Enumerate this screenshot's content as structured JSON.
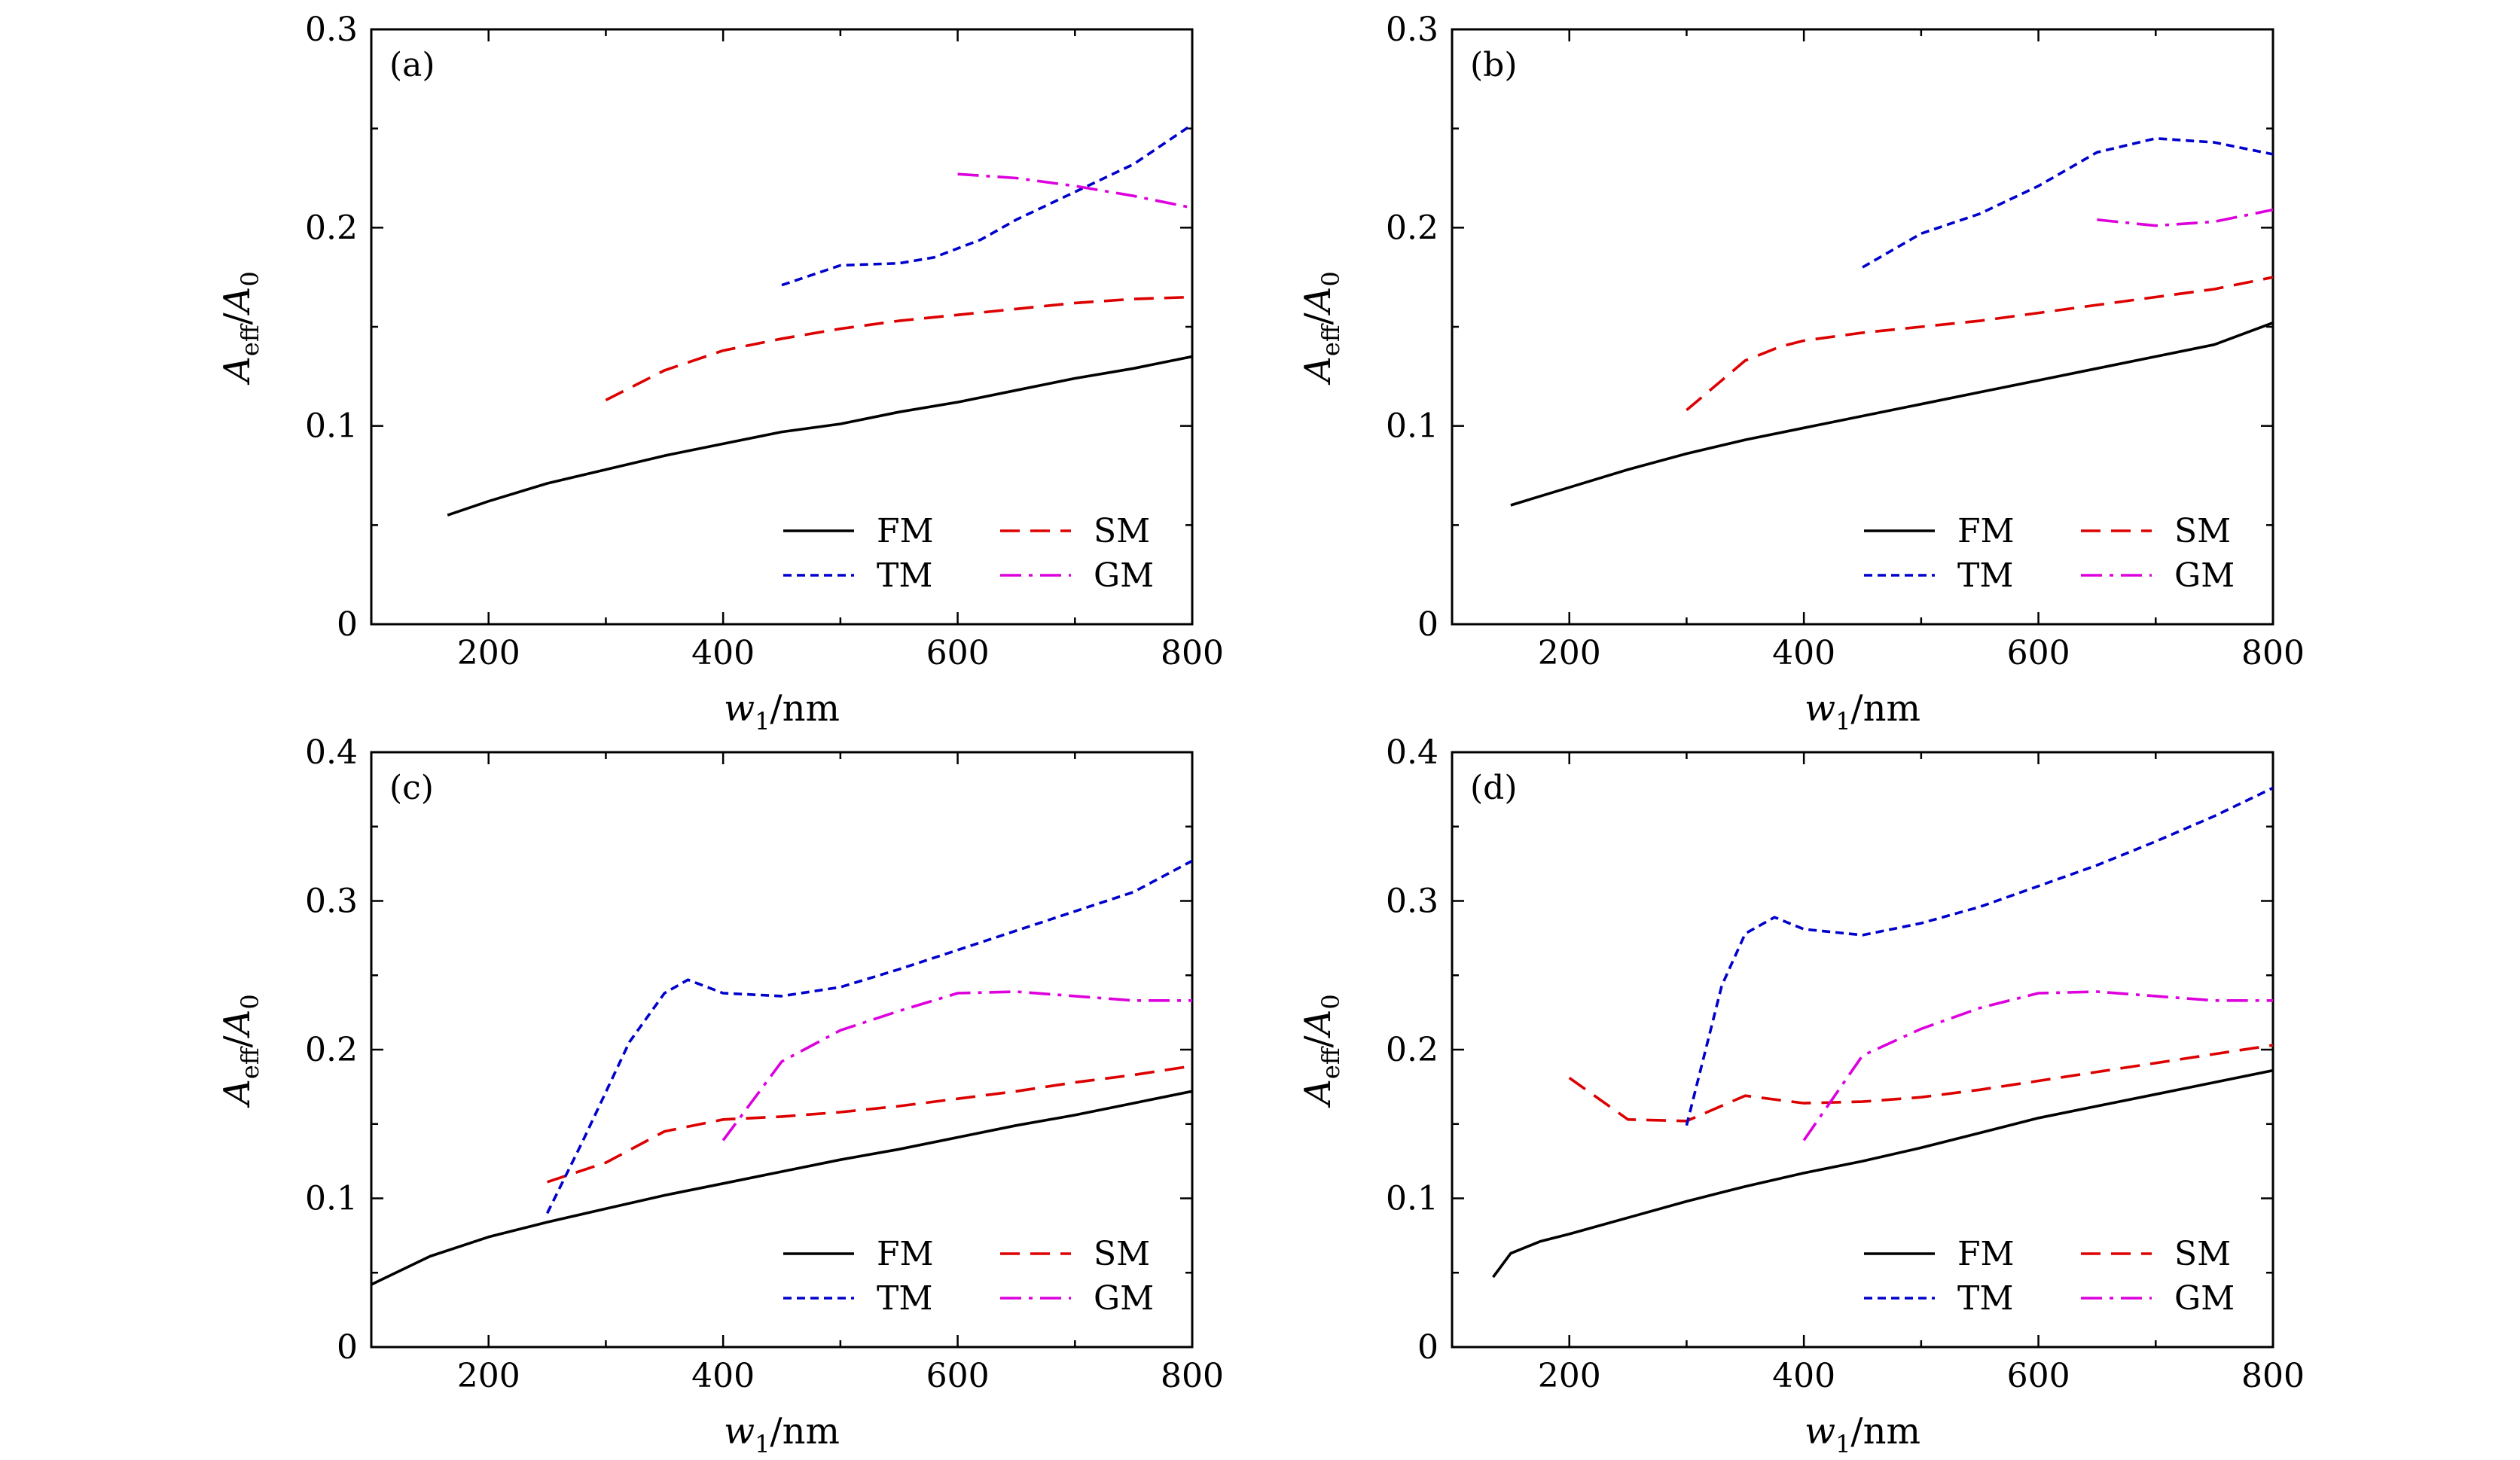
{
  "figure": {
    "x_axis_title": {
      "var": "w",
      "sub": "1",
      "unit": "/nm"
    },
    "y_axis_title": {
      "var": "A",
      "sub": "eff",
      "sep": "/",
      "var2": "A",
      "sub2": "0"
    }
  },
  "legend": [
    {
      "key": "FM",
      "label": "FM"
    },
    {
      "key": "SM",
      "label": "SM"
    },
    {
      "key": "TM",
      "label": "TM"
    },
    {
      "key": "GM",
      "label": "GM"
    }
  ],
  "styles": {
    "FM": {
      "color": "#000000",
      "dash": "solid"
    },
    "TM": {
      "color": "#0000cc",
      "dash": "short-dash"
    },
    "SM": {
      "color": "#dd0000",
      "dash": "long-dash"
    },
    "GM": {
      "color": "#dd00dd",
      "dash": "dash-dot"
    }
  },
  "chart_data": [
    {
      "type": "line",
      "panel": "(a)",
      "xlim": [
        100,
        800
      ],
      "ylim": [
        0,
        0.3
      ],
      "xticks": [
        "200",
        "400",
        "600",
        "800"
      ],
      "yticks": [
        "0",
        "0.1",
        "0.2",
        "0.3"
      ],
      "series": [
        {
          "name": "FM",
          "x": [
            165,
            200,
            250,
            300,
            350,
            400,
            450,
            500,
            550,
            600,
            650,
            700,
            750,
            800
          ],
          "y": [
            0.055,
            0.062,
            0.071,
            0.078,
            0.085,
            0.091,
            0.097,
            0.101,
            0.107,
            0.112,
            0.118,
            0.124,
            0.129,
            0.135
          ]
        },
        {
          "name": "SM",
          "x": [
            300,
            350,
            400,
            450,
            500,
            550,
            600,
            650,
            700,
            750,
            800
          ],
          "y": [
            0.113,
            0.128,
            0.138,
            0.144,
            0.149,
            0.153,
            0.156,
            0.159,
            0.162,
            0.164,
            0.165
          ]
        },
        {
          "name": "TM",
          "x": [
            450,
            500,
            550,
            580,
            620,
            650,
            700,
            750,
            800
          ],
          "y": [
            0.171,
            0.181,
            0.182,
            0.185,
            0.194,
            0.204,
            0.218,
            0.232,
            0.252
          ]
        },
        {
          "name": "GM",
          "x": [
            600,
            650,
            700,
            750,
            800
          ],
          "y": [
            0.227,
            0.225,
            0.221,
            0.216,
            0.21
          ]
        }
      ]
    },
    {
      "type": "line",
      "panel": "(b)",
      "xlim": [
        100,
        800
      ],
      "ylim": [
        0,
        0.3
      ],
      "xticks": [
        "200",
        "400",
        "600",
        "800"
      ],
      "yticks": [
        "0",
        "0.1",
        "0.2",
        "0.3"
      ],
      "series": [
        {
          "name": "FM",
          "x": [
            150,
            200,
            250,
            300,
            350,
            400,
            450,
            500,
            550,
            600,
            650,
            700,
            750,
            800
          ],
          "y": [
            0.06,
            0.069,
            0.078,
            0.086,
            0.093,
            0.099,
            0.105,
            0.111,
            0.117,
            0.123,
            0.129,
            0.135,
            0.141,
            0.152
          ]
        },
        {
          "name": "SM",
          "x": [
            300,
            320,
            350,
            380,
            400,
            450,
            500,
            550,
            600,
            650,
            700,
            750,
            800
          ],
          "y": [
            0.108,
            0.118,
            0.133,
            0.14,
            0.143,
            0.147,
            0.15,
            0.153,
            0.157,
            0.161,
            0.165,
            0.169,
            0.175
          ]
        },
        {
          "name": "TM",
          "x": [
            450,
            500,
            550,
            600,
            650,
            700,
            750,
            800
          ],
          "y": [
            0.18,
            0.197,
            0.207,
            0.221,
            0.238,
            0.245,
            0.243,
            0.237
          ]
        },
        {
          "name": "GM",
          "x": [
            650,
            700,
            750,
            800
          ],
          "y": [
            0.204,
            0.201,
            0.203,
            0.209
          ]
        }
      ]
    },
    {
      "type": "line",
      "panel": "(c)",
      "xlim": [
        100,
        800
      ],
      "ylim": [
        0,
        0.4
      ],
      "xticks": [
        "200",
        "400",
        "600",
        "800"
      ],
      "yticks": [
        "0",
        "0.1",
        "0.2",
        "0.3",
        "0.4"
      ],
      "series": [
        {
          "name": "FM",
          "x": [
            100,
            150,
            200,
            250,
            300,
            350,
            400,
            450,
            500,
            550,
            600,
            650,
            700,
            750,
            800
          ],
          "y": [
            0.042,
            0.061,
            0.074,
            0.084,
            0.093,
            0.102,
            0.11,
            0.118,
            0.126,
            0.133,
            0.141,
            0.149,
            0.156,
            0.164,
            0.172
          ]
        },
        {
          "name": "SM",
          "x": [
            250,
            300,
            350,
            400,
            450,
            500,
            550,
            600,
            650,
            700,
            750,
            800
          ],
          "y": [
            0.111,
            0.124,
            0.145,
            0.153,
            0.155,
            0.158,
            0.162,
            0.167,
            0.172,
            0.178,
            0.183,
            0.189
          ]
        },
        {
          "name": "TM",
          "x": [
            250,
            280,
            320,
            350,
            370,
            400,
            450,
            500,
            550,
            600,
            650,
            700,
            750,
            800
          ],
          "y": [
            0.09,
            0.138,
            0.205,
            0.238,
            0.247,
            0.238,
            0.236,
            0.242,
            0.254,
            0.267,
            0.28,
            0.293,
            0.306,
            0.327
          ]
        },
        {
          "name": "GM",
          "x": [
            400,
            450,
            500,
            550,
            600,
            650,
            700,
            750,
            800
          ],
          "y": [
            0.139,
            0.192,
            0.213,
            0.226,
            0.238,
            0.239,
            0.236,
            0.233,
            0.233
          ]
        }
      ]
    },
    {
      "type": "line",
      "panel": "(d)",
      "xlim": [
        100,
        800
      ],
      "ylim": [
        0,
        0.4
      ],
      "xticks": [
        "200",
        "400",
        "600",
        "800"
      ],
      "yticks": [
        "0",
        "0.1",
        "0.2",
        "0.3",
        "0.4"
      ],
      "series": [
        {
          "name": "FM",
          "x": [
            135,
            150,
            175,
            200,
            250,
            300,
            350,
            400,
            450,
            500,
            550,
            600,
            650,
            700,
            750,
            800
          ],
          "y": [
            0.047,
            0.063,
            0.071,
            0.076,
            0.087,
            0.098,
            0.108,
            0.117,
            0.125,
            0.134,
            0.144,
            0.154,
            0.162,
            0.17,
            0.178,
            0.186
          ]
        },
        {
          "name": "SM",
          "x": [
            200,
            250,
            300,
            350,
            400,
            450,
            500,
            550,
            600,
            650,
            700,
            750,
            800
          ],
          "y": [
            0.181,
            0.153,
            0.152,
            0.169,
            0.164,
            0.165,
            0.168,
            0.173,
            0.179,
            0.185,
            0.191,
            0.197,
            0.203
          ]
        },
        {
          "name": "TM",
          "x": [
            300,
            330,
            350,
            375,
            400,
            450,
            500,
            550,
            600,
            650,
            700,
            750,
            800
          ],
          "y": [
            0.149,
            0.243,
            0.278,
            0.289,
            0.281,
            0.277,
            0.285,
            0.296,
            0.31,
            0.324,
            0.34,
            0.357,
            0.376
          ]
        },
        {
          "name": "GM",
          "x": [
            400,
            450,
            500,
            550,
            600,
            650,
            700,
            750,
            800
          ],
          "y": [
            0.139,
            0.196,
            0.214,
            0.228,
            0.238,
            0.239,
            0.236,
            0.233,
            0.233
          ]
        }
      ]
    }
  ]
}
